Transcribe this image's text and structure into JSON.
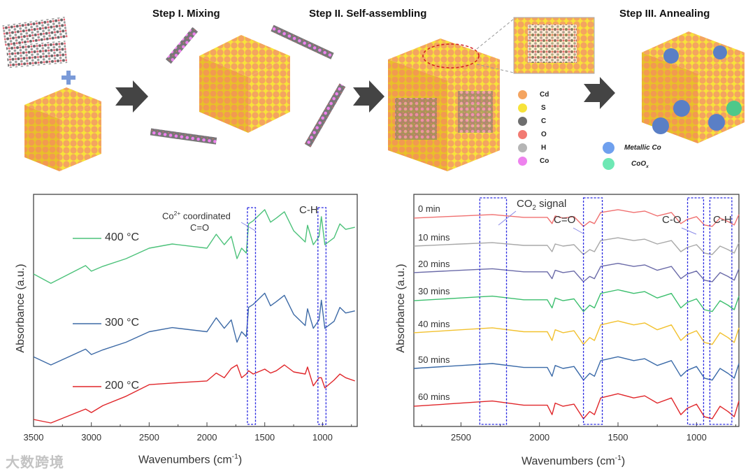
{
  "schematic": {
    "steps": [
      "Step I. Mixing",
      "Step II. Self-assembling",
      "Step III. Annealing"
    ],
    "legend": [
      {
        "label": "Cd",
        "color": "#f4a460"
      },
      {
        "label": "S",
        "color": "#f7e33a"
      },
      {
        "label": "C",
        "color": "#6e6e6e"
      },
      {
        "label": "O",
        "color": "#f27a72"
      },
      {
        "label": "H",
        "color": "#b5b5b5"
      },
      {
        "label": "Co",
        "color": "#ee82ee"
      }
    ],
    "legend2": [
      {
        "label": "Metallic Co",
        "color": "#6fa0ee"
      },
      {
        "label_main": "CoO",
        "label_sub": "x",
        "color": "#6ee8b4"
      }
    ]
  },
  "watermark": "大数跨境",
  "chart_data": [
    {
      "type": "line",
      "title": "",
      "xlabel_main": "Wavenumbers (cm",
      "xlabel_sup": "-1",
      "xlabel_end": ")",
      "ylabel": "Absorbance (a.u.)",
      "xlim": [
        3500,
        700
      ],
      "ylim": [
        0,
        100
      ],
      "xticks": [
        3500,
        3000,
        2500,
        2000,
        1500,
        1000
      ],
      "x": [
        3500,
        3350,
        3050,
        3000,
        2900,
        2700,
        2500,
        2300,
        2000,
        1920,
        1850,
        1790,
        1740,
        1700,
        1660,
        1640,
        1600,
        1500,
        1450,
        1400,
        1330,
        1250,
        1150,
        1130,
        1080,
        1030,
        1010,
        980,
        900,
        850,
        800,
        720
      ],
      "series": [
        {
          "name": "400 °C",
          "color": "#4cc27a",
          "y": [
            65.7,
            61.7,
            69.3,
            66.9,
            69,
            72.3,
            76.8,
            78.6,
            76.8,
            82.8,
            78.3,
            81.9,
            72.3,
            76.8,
            74.7,
            87.3,
            88.6,
            93.4,
            88,
            89.8,
            92.5,
            84.3,
            79.5,
            86.7,
            78.3,
            81.9,
            90.4,
            78.3,
            81.3,
            87.3,
            84.9,
            85.8
          ]
        },
        {
          "name": "300 °C",
          "color": "#3d6aa6",
          "y": [
            30,
            26.5,
            33.3,
            31,
            33,
            36.3,
            40.8,
            42.6,
            40.8,
            46.8,
            42.3,
            45.9,
            36.3,
            40.8,
            38.7,
            51.3,
            52.6,
            57.4,
            52,
            53.8,
            56.5,
            48.3,
            43.5,
            50.7,
            42.3,
            45.9,
            54.4,
            42.3,
            45.3,
            51.3,
            48.9,
            49.8
          ]
        },
        {
          "name": "200 °C",
          "color": "#e0262a",
          "y": [
            3,
            1.5,
            7.5,
            6,
            9,
            13,
            18,
            18.7,
            19.6,
            23,
            21,
            25,
            26.5,
            21,
            22.6,
            24,
            22.6,
            24.7,
            23,
            24,
            26.5,
            23.5,
            22.6,
            25.6,
            17.5,
            21,
            21,
            16.6,
            20,
            22.6,
            21,
            19.6
          ]
        }
      ],
      "highlight_ranges": [
        [
          1650,
          1580
        ],
        [
          1040,
          970
        ]
      ],
      "annotations": {
        "co_main": "Co",
        "co_sup": "2+",
        "co_rest": " coordinated",
        "co_line2": "C=O",
        "ch": "C-H"
      }
    },
    {
      "type": "line",
      "title": "",
      "xlabel_main": "Wavenumbers (cm",
      "xlabel_sup": "-1",
      "xlabel_end": ")",
      "ylabel": "Absorbance (a.u.)",
      "xlim": [
        2800,
        730
      ],
      "ylim": [
        0,
        100
      ],
      "xticks": [
        2500,
        2000,
        1500,
        1000
      ],
      "x": [
        2800,
        2500,
        2300,
        2100,
        1950,
        1920,
        1900,
        1850,
        1780,
        1720,
        1680,
        1650,
        1610,
        1500,
        1400,
        1330,
        1250,
        1160,
        1100,
        1060,
        1000,
        950,
        900,
        850,
        800,
        760,
        730
      ],
      "shape": [
        0,
        0.9,
        1.5,
        0.3,
        0.3,
        -2.4,
        0.9,
        0,
        0.6,
        -3.6,
        -1.5,
        -2.4,
        2.4,
        3.6,
        2.4,
        3,
        0.9,
        2.4,
        -2.4,
        -0.6,
        0.6,
        -3,
        -3.6,
        0,
        -1.5,
        -3,
        1.5
      ],
      "series": [
        {
          "name": "0 min",
          "color": "#f07070",
          "offset": 89.8,
          "scale": 1.0
        },
        {
          "name": "10 mins",
          "color": "#a8a8a8",
          "offset": 77.7,
          "scale": 1.0
        },
        {
          "name": "20 mins",
          "color": "#6a6aa8",
          "offset": 66.3,
          "scale": 1.1
        },
        {
          "name": "30 mins",
          "color": "#3cbf6e",
          "offset": 54.2,
          "scale": 1.3
        },
        {
          "name": "40 mins",
          "color": "#f2c12e",
          "offset": 40.4,
          "scale": 1.4
        },
        {
          "name": "50 mins",
          "color": "#3a6aa8",
          "offset": 25.0,
          "scale": 1.4
        },
        {
          "name": "60 mins",
          "color": "#e0262a",
          "offset": 8.7,
          "scale": 1.5
        }
      ],
      "highlight_ranges": [
        [
          2380,
          2210
        ],
        [
          1720,
          1600
        ],
        [
          1057,
          955
        ],
        [
          915,
          775
        ]
      ],
      "annotations": {
        "co2_main": "CO",
        "co2_sub": "2",
        "co2_rest": " signal",
        "co": "C=O",
        "c_o": "C-O",
        "ch": "C-H"
      }
    }
  ]
}
